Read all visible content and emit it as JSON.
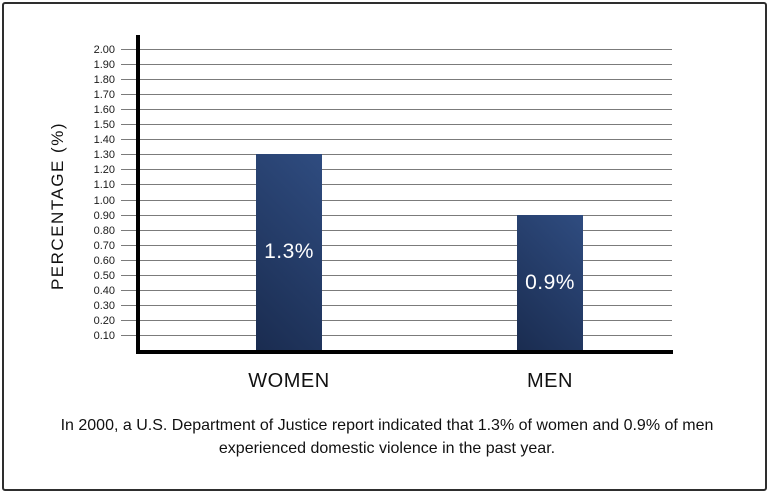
{
  "chart_data": {
    "type": "bar",
    "categories": [
      "WOMEN",
      "MEN"
    ],
    "values": [
      1.3,
      0.9
    ],
    "value_labels": [
      "1.3%",
      "0.9%"
    ],
    "title": "",
    "xlabel": "",
    "ylabel": "PERCENTAGE (%)",
    "ylim": [
      0,
      2.1
    ],
    "ytick_step": 0.1,
    "yticks": [
      "2.00",
      "1.90",
      "1.80",
      "1.70",
      "1.60",
      "1.50",
      "1.40",
      "1.30",
      "1.20",
      "1.10",
      "1.00",
      "0.90",
      "0.80",
      "0.70",
      "0.60",
      "0.50",
      "0.40",
      "0.30",
      "0.20",
      "0.10"
    ],
    "grid": true,
    "legend_position": "none"
  },
  "caption": {
    "line1": "In 2000, a U.S. Department of Justice report indicated that 1.3% of women and 0.9% of men",
    "line2": "experienced domestic violence in the past year."
  },
  "colors": {
    "bar_gradient_light": "#2f4c80",
    "bar_gradient_dark": "#1a2c50",
    "gridline": "#7b7b7b",
    "axis": "#000000",
    "text": "#111111",
    "value_label": "#ffffff",
    "border": "#2e2e2e"
  }
}
